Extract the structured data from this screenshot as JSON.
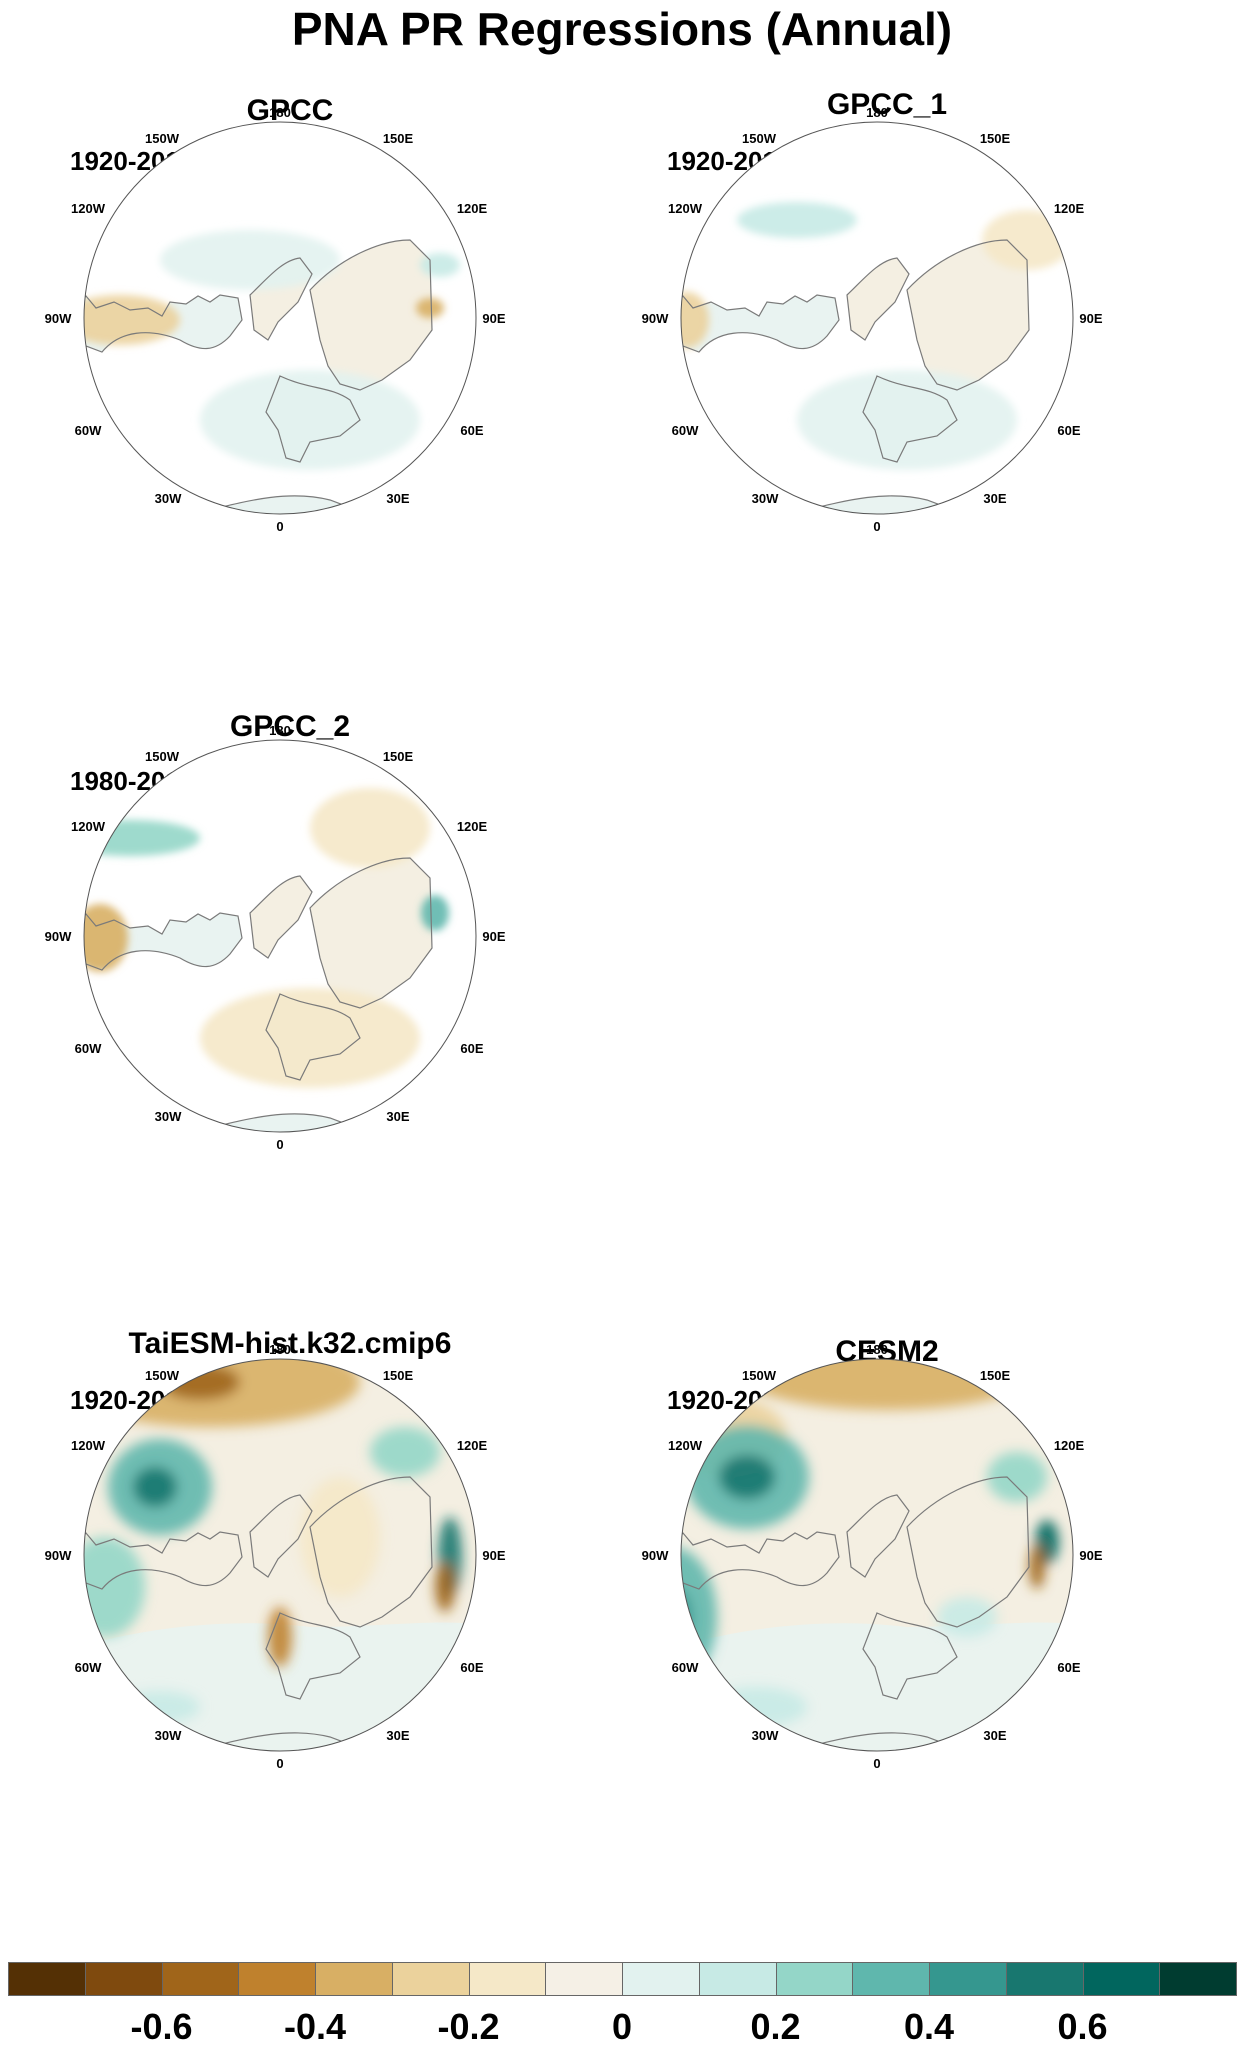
{
  "figure": {
    "title": "PNA PR Regressions (Annual)"
  },
  "panels": [
    {
      "title": "GPCC",
      "period": "1920-2010",
      "layout": "obs",
      "variant": 0
    },
    {
      "title": "GPCC_1",
      "period": "1920-2010",
      "layout": "obs",
      "variant": 1
    },
    {
      "title": "GPCC_2",
      "period": "1980-2014",
      "layout": "obs",
      "variant": 2
    },
    {
      "title": "TaiESM-hist.k32.cmip6",
      "period": "1920-2014",
      "layout": "model",
      "variant": 3
    },
    {
      "title": "CESM2",
      "period": "1920-2014",
      "layout": "model",
      "variant": 4
    }
  ],
  "longitude_labels": [
    "180",
    "150E",
    "120E",
    "90E",
    "60E",
    "30E",
    "0",
    "30W",
    "60W",
    "90W",
    "120W",
    "150W"
  ],
  "colorbar": {
    "colors": [
      "#543005",
      "#7f4a0e",
      "#a0651a",
      "#bf812d",
      "#d8af64",
      "#ebd29c",
      "#f5e8c8",
      "#f5f0e6",
      "#e2f2ef",
      "#c7eae5",
      "#94d6c8",
      "#5fb7ad",
      "#35978f",
      "#18776f",
      "#01665e",
      "#003c30"
    ],
    "tick_labels": [
      "-0.6",
      "-0.4",
      "-0.2",
      "0",
      "0.2",
      "0.4",
      "0.6"
    ]
  },
  "palette": {
    "land_base": "#e9f3f1",
    "ocean_base": "#f4efe2",
    "no_data": "#ffffff",
    "coast": "#7a7a7a"
  }
}
